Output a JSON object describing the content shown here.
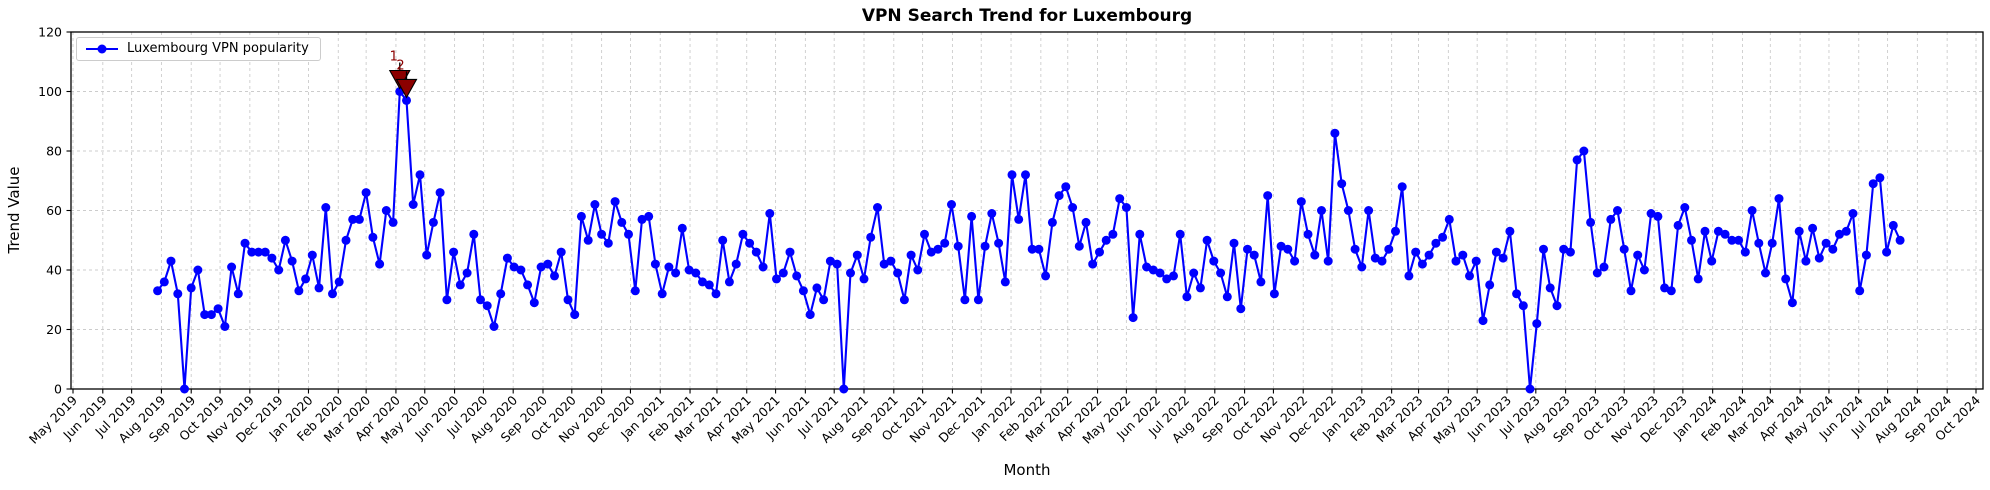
{
  "chart_data": {
    "type": "line",
    "title": "VPN Search Trend for Luxembourg",
    "xlabel": "Month",
    "ylabel": "Trend Value",
    "ylim": [
      0,
      120
    ],
    "yticks": [
      0,
      20,
      40,
      60,
      80,
      100,
      120
    ],
    "grid": true,
    "legend": {
      "label": "Luxembourg VPN popularity",
      "position": "upper left"
    },
    "x_tick_labels": [
      "May 2019",
      "Jun 2019",
      "Jul 2019",
      "Aug 2019",
      "Sep 2019",
      "Oct 2019",
      "Nov 2019",
      "Dec 2019",
      "Jan 2020",
      "Feb 2020",
      "Mar 2020",
      "Apr 2020",
      "May 2020",
      "Jun 2020",
      "Jul 2020",
      "Aug 2020",
      "Sep 2020",
      "Oct 2020",
      "Nov 2020",
      "Dec 2020",
      "Jan 2021",
      "Feb 2021",
      "Mar 2021",
      "Apr 2021",
      "May 2021",
      "Jun 2021",
      "Jul 2021",
      "Aug 2021",
      "Sep 2021",
      "Oct 2021",
      "Nov 2021",
      "Dec 2021",
      "Jan 2022",
      "Feb 2022",
      "Mar 2022",
      "Apr 2022",
      "May 2022",
      "Jun 2022",
      "Jul 2022",
      "Aug 2022",
      "Sep 2022",
      "Oct 2022",
      "Nov 2022",
      "Dec 2022",
      "Jan 2023",
      "Feb 2023",
      "Mar 2023",
      "Apr 2023",
      "May 2023",
      "Jun 2023",
      "Jul 2023",
      "Aug 2023",
      "Sep 2023",
      "Oct 2023",
      "Nov 2023",
      "Dec 2023",
      "Jan 2024",
      "Feb 2024",
      "Mar 2024",
      "Apr 2024",
      "May 2024",
      "Jun 2024",
      "Jul 2024",
      "Aug 2024",
      "Sep 2024",
      "Oct 2024"
    ],
    "series": [
      {
        "name": "Luxembourg VPN popularity",
        "start_date": "2019-07-28",
        "frequency": "weekly",
        "values": [
          33,
          36,
          43,
          32,
          0,
          34,
          40,
          25,
          25,
          27,
          21,
          41,
          32,
          49,
          46,
          46,
          46,
          44,
          40,
          50,
          43,
          33,
          37,
          45,
          34,
          61,
          32,
          36,
          50,
          57,
          57,
          66,
          51,
          42,
          60,
          56,
          100,
          97,
          62,
          72,
          45,
          56,
          66,
          30,
          46,
          35,
          39,
          52,
          30,
          28,
          21,
          32,
          44,
          41,
          40,
          35,
          29,
          41,
          42,
          38,
          46,
          30,
          25,
          58,
          50,
          62,
          52,
          49,
          63,
          56,
          52,
          33,
          57,
          58,
          42,
          32,
          41,
          39,
          54,
          40,
          39,
          36,
          35,
          32,
          50,
          36,
          42,
          52,
          49,
          46,
          41,
          59,
          37,
          39,
          46,
          38,
          33,
          25,
          34,
          30,
          43,
          42,
          0,
          39,
          45,
          37,
          51,
          61,
          42,
          43,
          39,
          30,
          45,
          40,
          52,
          46,
          47,
          49,
          62,
          48,
          30,
          58,
          30,
          48,
          59,
          49,
          36,
          72,
          57,
          72,
          47,
          47,
          38,
          56,
          65,
          68,
          61,
          48,
          56,
          42,
          46,
          50,
          52,
          64,
          61,
          24,
          52,
          41,
          40,
          39,
          37,
          38,
          52,
          31,
          39,
          34,
          50,
          43,
          39,
          31,
          49,
          27,
          47,
          45,
          36,
          65,
          32,
          48,
          47,
          43,
          63,
          52,
          45,
          60,
          43,
          86,
          69,
          60,
          47,
          41,
          60,
          44,
          43,
          47,
          53,
          68,
          38,
          46,
          42,
          45,
          49,
          51,
          57,
          43,
          45,
          38,
          43,
          23,
          35,
          46,
          44,
          53,
          32,
          28,
          0,
          22,
          47,
          34,
          28,
          47,
          46,
          77,
          80,
          56,
          39,
          41,
          57,
          60,
          47,
          33,
          45,
          40,
          59,
          58,
          34,
          33,
          55,
          61,
          50,
          37,
          53,
          43,
          53,
          52,
          50,
          50,
          46,
          60,
          49,
          39,
          49,
          64,
          37,
          29,
          53,
          43,
          54,
          44,
          49,
          47,
          52,
          53,
          59,
          33,
          45,
          69,
          71,
          46,
          55,
          50
        ]
      }
    ],
    "annotations": [
      {
        "label": "1",
        "point_index": 36,
        "value": 100
      },
      {
        "label": "2",
        "point_index": 37,
        "value": 97
      }
    ],
    "colors": {
      "line": "#0000FF",
      "marker": "#0000FF",
      "annotation": "#8B0000",
      "annotation_text": "#8B0000",
      "grid": "#CCCCCC",
      "frame": "#000000",
      "background": "#FFFFFF"
    }
  }
}
